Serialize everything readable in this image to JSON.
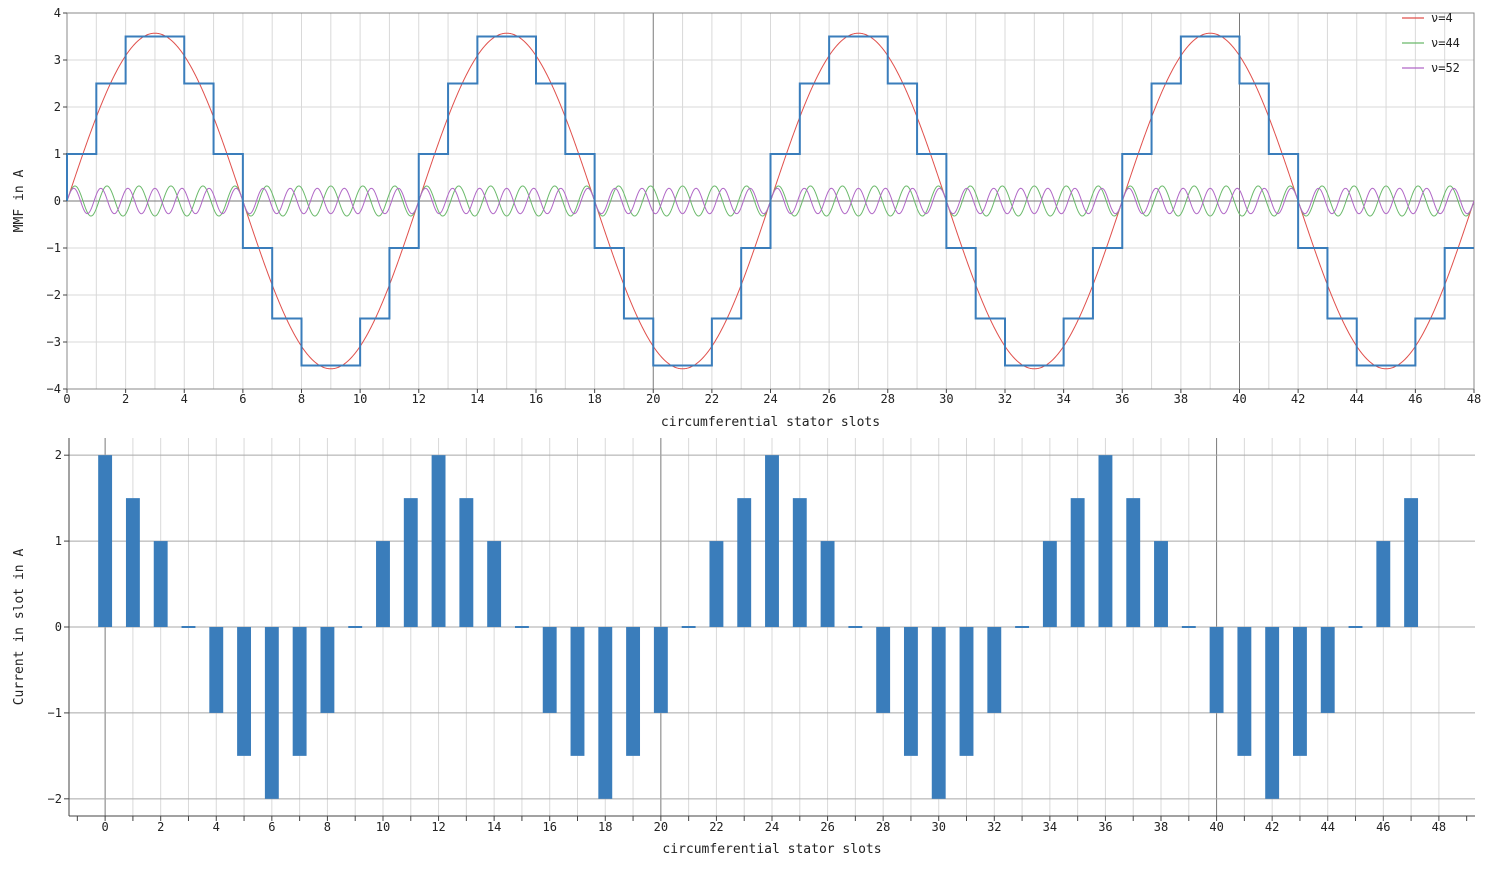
{
  "chart_data": [
    {
      "type": "line",
      "title": "",
      "xlabel": "circumferential stator slots",
      "ylabel": "MMF in A",
      "xlim": [
        0,
        48
      ],
      "ylim": [
        -4,
        4
      ],
      "x_ticks": [
        "0",
        "2",
        "4",
        "6",
        "8",
        "10",
        "12",
        "14",
        "16",
        "18",
        "20",
        "22",
        "24",
        "26",
        "28",
        "30",
        "32",
        "34",
        "36",
        "38",
        "40",
        "42",
        "44",
        "46",
        "48"
      ],
      "y_ticks": [
        "4",
        "3",
        "2",
        "1",
        "0",
        "−1",
        "−2",
        "−3",
        "−4"
      ],
      "grid": true,
      "legend_position": "top-right",
      "legend": [
        "ν=4",
        "ν=44",
        "ν=52"
      ],
      "colors": {
        "step": "#3a7dbb",
        "nu4": "#e0504c",
        "nu44": "#6ab96a",
        "nu52": "#b067c6",
        "grid": "#d9d9d9",
        "major_grid": "#7a7a7a"
      },
      "step_series": {
        "name": "",
        "x": [
          0,
          1,
          2,
          3,
          4,
          5,
          6,
          7,
          8,
          9,
          10,
          11,
          12,
          13,
          14,
          15,
          16,
          17,
          18,
          19,
          20,
          21,
          22,
          23,
          24,
          25,
          26,
          27,
          28,
          29,
          30,
          31,
          32,
          33,
          34,
          35,
          36,
          37,
          38,
          39,
          40,
          41,
          42,
          43,
          44,
          45,
          46,
          47,
          48
        ],
        "values": [
          1,
          2.5,
          3.5,
          3.5,
          2.5,
          1,
          -1,
          -2.5,
          -3.5,
          -3.5,
          -2.5,
          -1,
          1,
          2.5,
          3.5,
          3.5,
          2.5,
          1,
          -1,
          -2.5,
          -3.5,
          -3.5,
          -2.5,
          -1,
          1,
          2.5,
          3.5,
          3.5,
          2.5,
          1,
          -1,
          -2.5,
          -3.5,
          -3.5,
          -2.5,
          -1,
          1,
          2.5,
          3.5,
          3.5,
          2.5,
          1,
          -1,
          -2.5,
          -3.5,
          -3.5,
          -2.5,
          -1,
          -1
        ]
      },
      "harmonics": [
        {
          "name": "ν=4",
          "amplitude": 3.57,
          "periods": 4
        },
        {
          "name": "ν=44",
          "amplitude": 0.32,
          "periods": 44
        },
        {
          "name": "ν=52",
          "amplitude": 0.27,
          "periods": 52
        }
      ]
    },
    {
      "type": "bar",
      "title": "",
      "xlabel": "circumferential stator slots",
      "ylabel": "Current in slot in A",
      "xlim": [
        -1.3,
        49.3
      ],
      "ylim": [
        -2.2,
        2.2
      ],
      "x_ticks": [
        "0",
        "2",
        "4",
        "6",
        "8",
        "10",
        "12",
        "14",
        "16",
        "18",
        "20",
        "22",
        "24",
        "26",
        "28",
        "30",
        "32",
        "34",
        "36",
        "38",
        "40",
        "42",
        "44",
        "46",
        "48"
      ],
      "y_ticks": [
        "2",
        "1",
        "0",
        "−1",
        "−2"
      ],
      "grid": true,
      "color": "#3a7dbb",
      "categories": [
        0,
        1,
        2,
        3,
        4,
        5,
        6,
        7,
        8,
        9,
        10,
        11,
        12,
        13,
        14,
        15,
        16,
        17,
        18,
        19,
        20,
        21,
        22,
        23,
        24,
        25,
        26,
        27,
        28,
        29,
        30,
        31,
        32,
        33,
        34,
        35,
        36,
        37,
        38,
        39,
        40,
        41,
        42,
        43,
        44,
        45,
        46,
        47
      ],
      "values": [
        2,
        1.5,
        1,
        0,
        -1,
        -1.5,
        -2,
        -1.5,
        -1,
        0,
        1,
        1.5,
        2,
        1.5,
        1,
        0,
        -1,
        -1.5,
        -2,
        -1.5,
        -1,
        0,
        1,
        1.5,
        2,
        1.5,
        1,
        0,
        -1,
        -1.5,
        -2,
        -1.5,
        -1,
        0,
        1,
        1.5,
        2,
        1.5,
        1,
        0,
        -1,
        -1.5,
        -2,
        -1.5,
        -1,
        0,
        1,
        1.5
      ]
    }
  ]
}
